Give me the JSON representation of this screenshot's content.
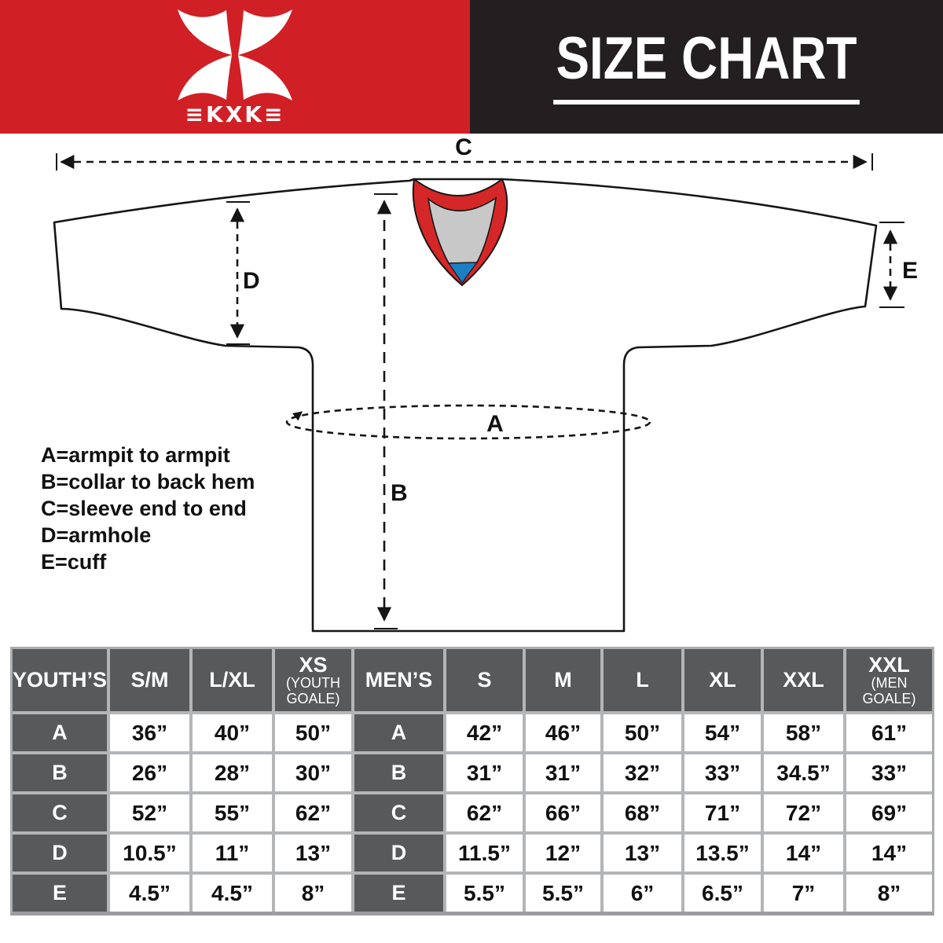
{
  "colors": {
    "brand-red": "#d11f26",
    "header-black": "#231f20",
    "table-head-gray": "#58595b",
    "grid-gray": "#b3b5b7",
    "collar-red": "#d62728",
    "collar-gray": "#c8c8c8",
    "collar-blue": "#1b7fc3"
  },
  "header": {
    "logo": {
      "name": "KXK",
      "wordmark": "≡KXK≡"
    },
    "title": "SIZE CHART"
  },
  "diagram": {
    "measure_labels": {
      "A": "A",
      "B": "B",
      "C": "C",
      "D": "D",
      "E": "E"
    },
    "legend": [
      "A=armpit to armpit",
      "B=collar to back hem",
      "C=sleeve end to end",
      "D=armhole",
      "E=cuff"
    ]
  },
  "chart_data": [
    {
      "type": "table",
      "title": "YOUTH’S",
      "columns": [
        {
          "main": "S/M",
          "sub": ""
        },
        {
          "main": "L/XL",
          "sub": ""
        },
        {
          "main": "XS",
          "sub": "(YOUTH GOALE)"
        }
      ],
      "rows": [
        {
          "label": "A",
          "values": [
            "36”",
            "40”",
            "50”"
          ]
        },
        {
          "label": "B",
          "values": [
            "26”",
            "28”",
            "30”"
          ]
        },
        {
          "label": "C",
          "values": [
            "52”",
            "55”",
            "62”"
          ]
        },
        {
          "label": "D",
          "values": [
            "10.5”",
            "11”",
            "13”"
          ]
        },
        {
          "label": "E",
          "values": [
            "4.5”",
            "4.5”",
            "8”"
          ]
        }
      ]
    },
    {
      "type": "table",
      "title": "MEN’S",
      "columns": [
        {
          "main": "S",
          "sub": ""
        },
        {
          "main": "M",
          "sub": ""
        },
        {
          "main": "L",
          "sub": ""
        },
        {
          "main": "XL",
          "sub": ""
        },
        {
          "main": "XXL",
          "sub": ""
        },
        {
          "main": "XXL",
          "sub": "(MEN GOALE)"
        }
      ],
      "rows": [
        {
          "label": "A",
          "values": [
            "42”",
            "46”",
            "50”",
            "54”",
            "58”",
            "61”"
          ]
        },
        {
          "label": "B",
          "values": [
            "31”",
            "31”",
            "32”",
            "33”",
            "34.5”",
            "33”"
          ]
        },
        {
          "label": "C",
          "values": [
            "62”",
            "66”",
            "68”",
            "71”",
            "72”",
            "69”"
          ]
        },
        {
          "label": "D",
          "values": [
            "11.5”",
            "12”",
            "13”",
            "13.5”",
            "14”",
            "14”"
          ]
        },
        {
          "label": "E",
          "values": [
            "5.5”",
            "5.5”",
            "6”",
            "6.5”",
            "7”",
            "8”"
          ]
        }
      ]
    }
  ]
}
